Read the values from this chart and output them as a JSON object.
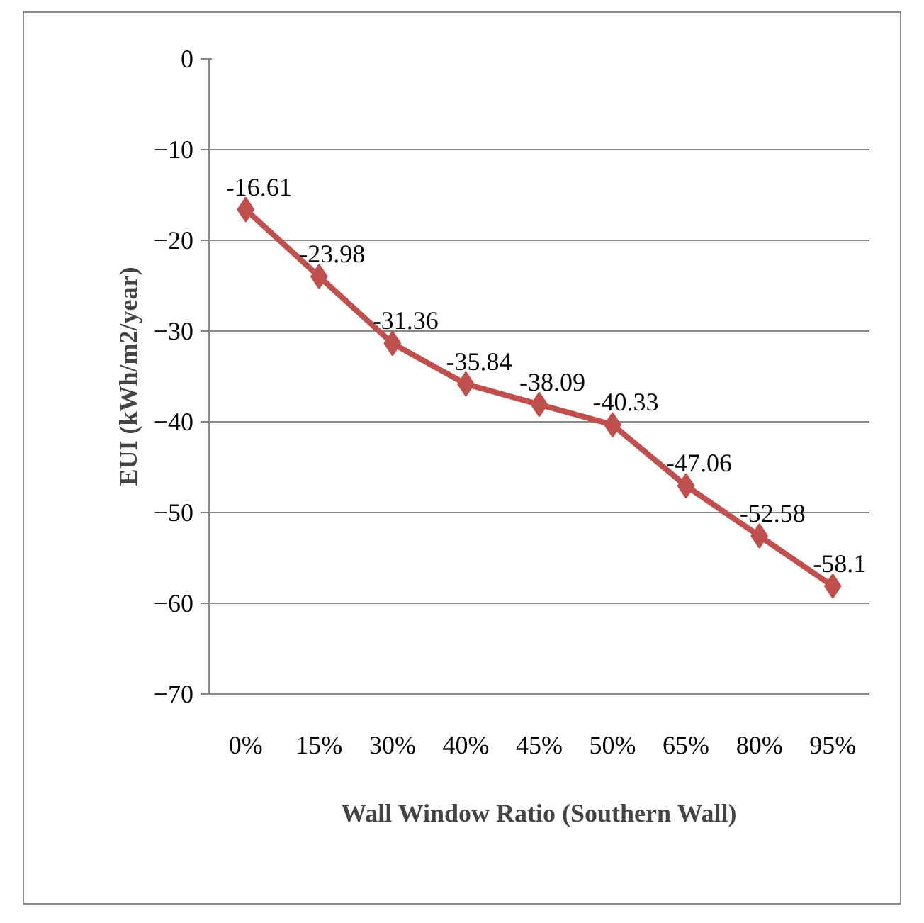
{
  "chart_data": {
    "type": "line",
    "xlabel": "Wall Window Ratio (Southern Wall)",
    "ylabel": "EUI (kWh/m2/year)",
    "categories": [
      "0%",
      "15%",
      "30%",
      "40%",
      "45%",
      "50%",
      "65%",
      "80%",
      "95%"
    ],
    "series": [
      {
        "color": "#c0504d",
        "values": [
          -16.61,
          -23.98,
          -31.36,
          -35.84,
          -38.09,
          -40.33,
          -47.06,
          -52.58,
          -58.1
        ]
      }
    ],
    "ylim": [
      -70,
      0
    ],
    "yticks": [
      -70,
      -60,
      -50,
      -40,
      -30,
      -20,
      -10,
      0
    ],
    "grid": "y",
    "marker": "diamond",
    "line_style": "solid",
    "data_labels": true
  }
}
